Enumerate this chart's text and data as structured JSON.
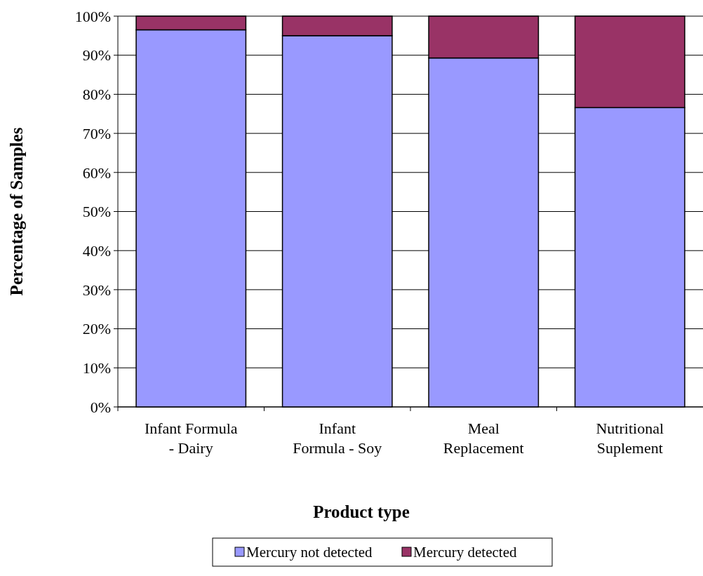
{
  "chart_data": {
    "type": "bar",
    "stacked": true,
    "xlabel": "Product type",
    "ylabel": "Percentage of Samples",
    "categories": [
      "Infant Formula - Dairy",
      "Infant Formula - Soy",
      "Meal Replacement",
      "Nutritional Suplement"
    ],
    "series": [
      {
        "name": "Mercury not detected",
        "color": "#9999ff",
        "values": [
          96.5,
          95,
          89.3,
          76.6
        ]
      },
      {
        "name": "Mercury detected",
        "color": "#993366",
        "values": [
          3.5,
          5,
          10.7,
          23.4
        ]
      }
    ],
    "ylim": [
      0,
      100
    ],
    "yticks": [
      {
        "value": 0,
        "label": "0%"
      },
      {
        "value": 10,
        "label": "10%"
      },
      {
        "value": 20,
        "label": "20%"
      },
      {
        "value": 30,
        "label": "30%"
      },
      {
        "value": 40,
        "label": "40%"
      },
      {
        "value": 50,
        "label": "50%"
      },
      {
        "value": 60,
        "label": "60%"
      },
      {
        "value": 70,
        "label": "70%"
      },
      {
        "value": 80,
        "label": "80%"
      },
      {
        "value": 90,
        "label": "90%"
      },
      {
        "value": 100,
        "label": "100%"
      }
    ],
    "grid": "y",
    "legend": "bottom"
  }
}
